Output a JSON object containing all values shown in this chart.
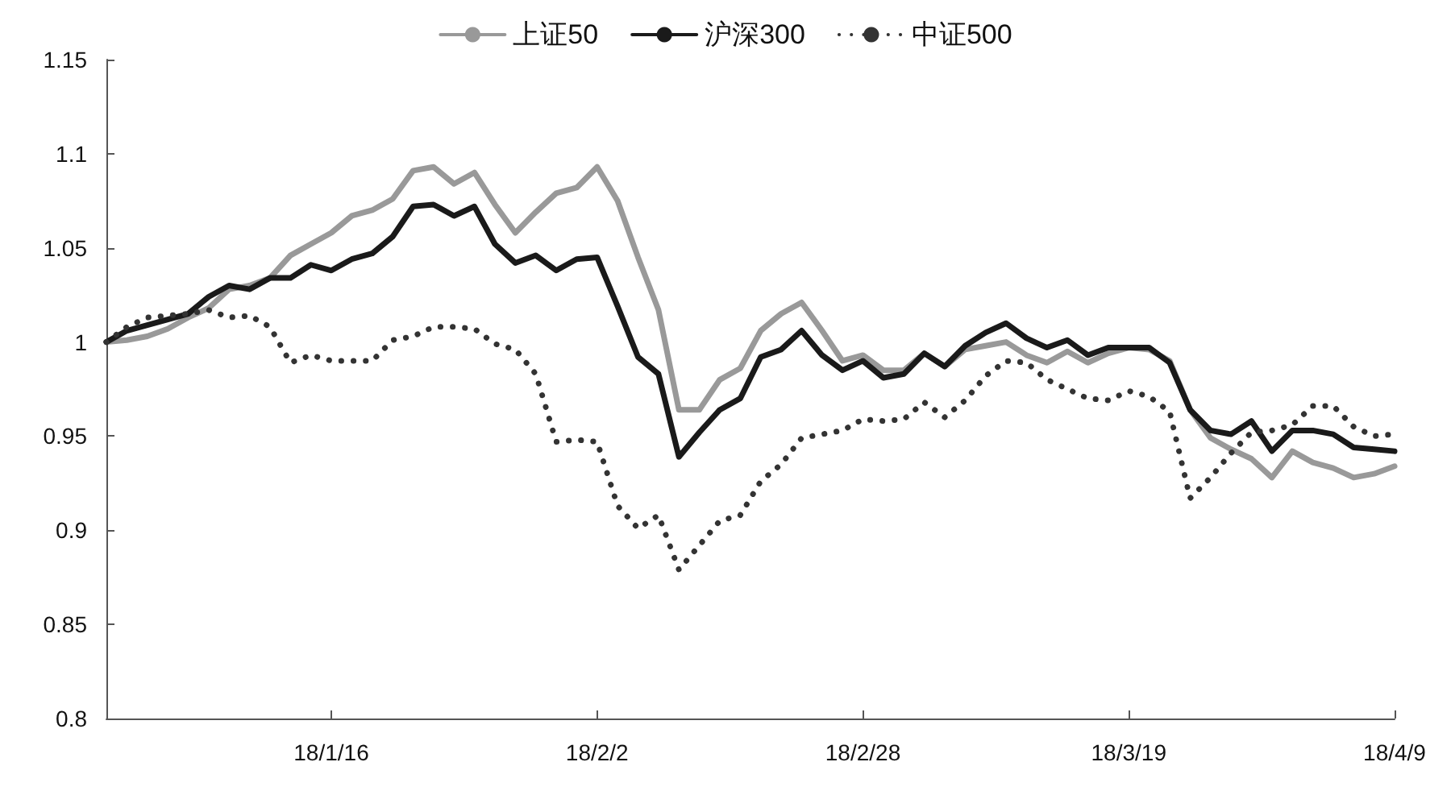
{
  "chart_data": {
    "type": "line",
    "categories": [
      null,
      null,
      null,
      null,
      null,
      null,
      null,
      null,
      null,
      null,
      null,
      "18/1/16",
      null,
      null,
      null,
      null,
      null,
      null,
      null,
      null,
      null,
      null,
      null,
      null,
      "18/2/2",
      null,
      null,
      null,
      null,
      null,
      null,
      null,
      null,
      null,
      null,
      null,
      null,
      "18/2/28",
      null,
      null,
      null,
      null,
      null,
      null,
      null,
      null,
      null,
      null,
      null,
      null,
      "18/3/19",
      null,
      null,
      null,
      null,
      null,
      null,
      null,
      null,
      null,
      null,
      null,
      null,
      "18/4/9"
    ],
    "series": [
      {
        "name": "上证50",
        "color": "#999999",
        "line_style": "solid",
        "values": [
          1.0,
          1.001,
          1.003,
          1.007,
          1.013,
          1.018,
          1.028,
          1.03,
          1.034,
          1.046,
          1.052,
          1.058,
          1.067,
          1.07,
          1.076,
          1.091,
          1.093,
          1.084,
          1.09,
          1.073,
          1.058,
          1.069,
          1.079,
          1.082,
          1.093,
          1.075,
          1.045,
          1.017,
          0.964,
          0.964,
          0.98,
          0.986,
          1.006,
          1.015,
          1.021,
          1.006,
          0.99,
          0.993,
          0.985,
          0.985,
          0.994,
          0.987,
          0.996,
          0.998,
          1.0,
          0.993,
          0.989,
          0.995,
          0.989,
          0.994,
          0.997,
          0.996,
          0.99,
          0.964,
          0.949,
          0.943,
          0.938,
          0.928,
          0.942,
          0.936,
          0.933,
          0.928,
          0.93,
          0.934
        ]
      },
      {
        "name": "沪深300",
        "color": "#1a1a1a",
        "line_style": "solid",
        "values": [
          1.0,
          1.006,
          1.009,
          1.012,
          1.015,
          1.024,
          1.03,
          1.028,
          1.034,
          1.034,
          1.041,
          1.038,
          1.044,
          1.047,
          1.056,
          1.072,
          1.073,
          1.067,
          1.072,
          1.052,
          1.042,
          1.046,
          1.038,
          1.044,
          1.045,
          1.019,
          0.992,
          0.983,
          0.939,
          0.952,
          0.964,
          0.97,
          0.992,
          0.996,
          1.006,
          0.993,
          0.985,
          0.99,
          0.981,
          0.983,
          0.994,
          0.987,
          0.998,
          1.005,
          1.01,
          1.002,
          0.997,
          1.001,
          0.993,
          0.997,
          0.997,
          0.997,
          0.989,
          0.964,
          0.953,
          0.951,
          0.958,
          0.942,
          0.953,
          0.953,
          0.951,
          0.944,
          0.943,
          0.942
        ]
      },
      {
        "name": "中证500",
        "color": "#333333",
        "line_style": "dotted",
        "values": [
          1.0,
          1.008,
          1.013,
          1.014,
          1.015,
          1.017,
          1.013,
          1.014,
          1.008,
          0.989,
          0.993,
          0.99,
          0.99,
          0.99,
          1.001,
          1.003,
          1.008,
          1.008,
          1.007,
          0.999,
          0.996,
          0.983,
          0.947,
          0.948,
          0.947,
          0.913,
          0.901,
          0.908,
          0.879,
          0.892,
          0.905,
          0.908,
          0.926,
          0.935,
          0.949,
          0.951,
          0.953,
          0.959,
          0.958,
          0.959,
          0.968,
          0.96,
          0.969,
          0.982,
          0.99,
          0.989,
          0.98,
          0.975,
          0.97,
          0.969,
          0.974,
          0.971,
          0.963,
          0.917,
          0.928,
          0.941,
          0.952,
          0.953,
          0.956,
          0.966,
          0.966,
          0.955,
          0.95,
          0.951
        ]
      }
    ],
    "ylim": [
      0.8,
      1.15
    ],
    "yticks": [
      0.8,
      0.85,
      0.9,
      0.95,
      1,
      1.05,
      1.1,
      1.15
    ],
    "grid": false,
    "legend": "top",
    "marker": "none"
  }
}
